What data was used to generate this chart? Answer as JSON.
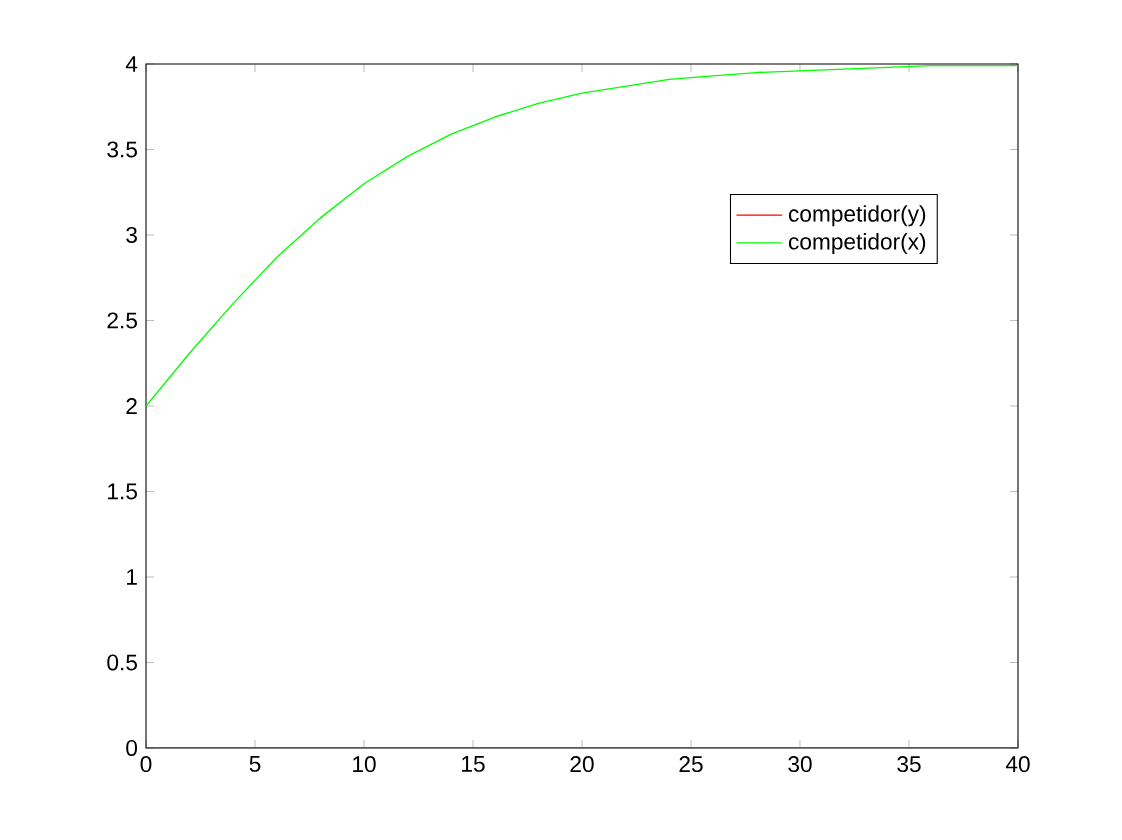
{
  "chart_data": {
    "type": "line",
    "x": [
      0,
      2,
      4,
      6,
      8,
      10,
      12,
      14,
      16,
      18,
      20,
      22,
      24,
      26,
      28,
      30,
      32,
      34,
      36,
      38,
      40
    ],
    "series": [
      {
        "name": "competidor(y)",
        "color": "#ff0000",
        "values": [
          0,
          0,
          0,
          0,
          0,
          0,
          0,
          0,
          0,
          0,
          0,
          0,
          0,
          0,
          0,
          0,
          0,
          0,
          0,
          0,
          0
        ]
      },
      {
        "name": "competidor(x)",
        "color": "#00ff00",
        "values": [
          2.0,
          2.31,
          2.6,
          2.87,
          3.1,
          3.3,
          3.46,
          3.59,
          3.69,
          3.77,
          3.83,
          3.87,
          3.91,
          3.93,
          3.95,
          3.96,
          3.97,
          3.98,
          3.99,
          3.99,
          3.99
        ]
      }
    ],
    "xlim": [
      0,
      40
    ],
    "ylim": [
      0,
      4
    ],
    "xticks": [
      0,
      5,
      10,
      15,
      20,
      25,
      30,
      35,
      40
    ],
    "yticks": [
      0,
      {
        "value": 0.5,
        "label": "0.5"
      },
      1,
      {
        "value": 1.5,
        "label": "1.5"
      },
      2,
      {
        "value": 2.5,
        "label": "2.5"
      },
      3,
      {
        "value": 3.5,
        "label": "3.5"
      },
      4
    ],
    "legend": "top right",
    "grid": false,
    "marker": "none",
    "line_style": "solid"
  }
}
